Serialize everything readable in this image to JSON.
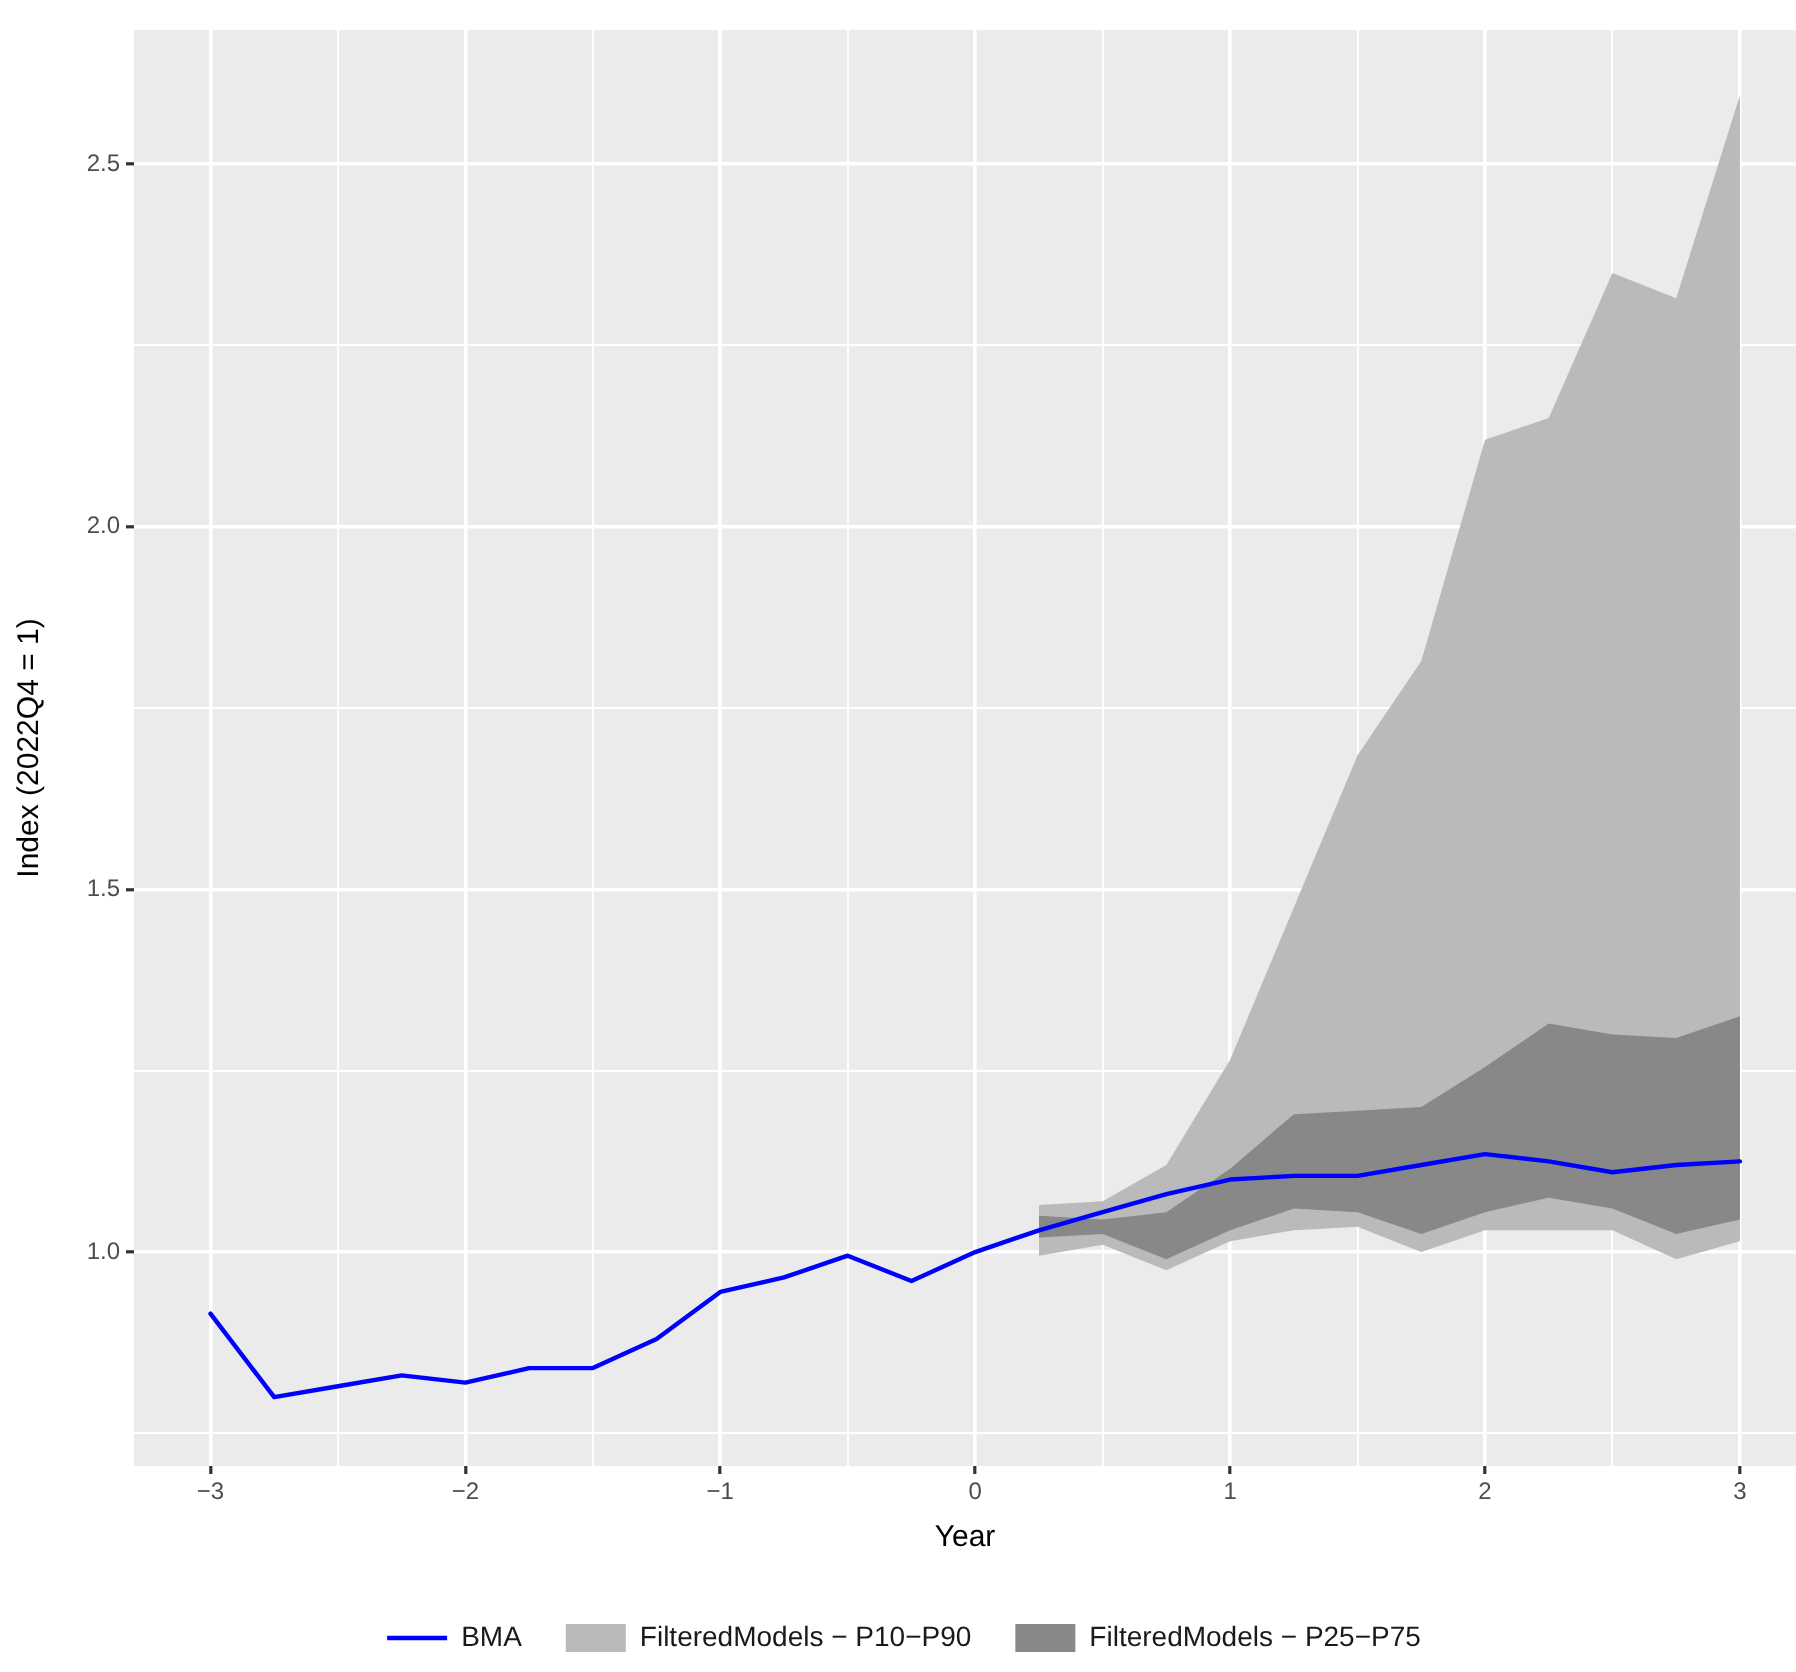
{
  "chart_data": {
    "type": "line",
    "xlabel": "Year",
    "ylabel": "Index (2022Q4 = 1)",
    "xlim": [
      -3.3,
      3.22
    ],
    "ylim": [
      0.705,
      2.685
    ],
    "xticks": [
      {
        "value": -3,
        "label": "−3"
      },
      {
        "value": -2.5,
        "label": null
      },
      {
        "value": -2,
        "label": "−2"
      },
      {
        "value": -1.5,
        "label": null
      },
      {
        "value": -1,
        "label": "−1"
      },
      {
        "value": -0.5,
        "label": null
      },
      0,
      {
        "value": 0.5,
        "label": null
      },
      1,
      {
        "value": 1.5,
        "label": null
      },
      2,
      {
        "value": 2.5,
        "label": null
      },
      3
    ],
    "yticks": [
      {
        "value": 0.75,
        "label": null
      },
      {
        "value": 1,
        "label": "1.0"
      },
      {
        "value": 1.25,
        "label": null
      },
      1.5,
      {
        "value": 1.75,
        "label": null
      },
      {
        "value": 2,
        "label": "2.0"
      },
      {
        "value": 2.25,
        "label": null
      },
      2.5
    ],
    "grid": true,
    "legend": "bottom",
    "line_style": "solid",
    "series": [
      {
        "name": "BMA",
        "color": "#0000ff",
        "x": [
          -3,
          -2.75,
          -2.5,
          -2.25,
          -2,
          -1.75,
          -1.5,
          -1.25,
          -1,
          -0.75,
          -0.5,
          -0.25,
          0,
          0.25,
          0.5,
          0.75,
          1,
          1.25,
          1.5,
          1.75,
          2,
          2.25,
          2.5,
          2.75,
          3
        ],
        "values": [
          0.915,
          0.8,
          0.815,
          0.83,
          0.82,
          0.84,
          0.84,
          0.88,
          0.945,
          0.965,
          0.995,
          0.96,
          1.0,
          1.03,
          1.055,
          1.08,
          1.1,
          1.105,
          1.105,
          1.12,
          1.135,
          1.125,
          1.11,
          1.12,
          1.125
        ]
      },
      {
        "name": "FilteredModels − P10−P90",
        "type": "area",
        "color": "#bababa",
        "x": [
          0.25,
          0.5,
          0.75,
          1,
          1.25,
          1.5,
          1.75,
          2,
          2.25,
          2.5,
          2.75,
          3
        ],
        "values": [
          null,
          null,
          null,
          null,
          null,
          null,
          null,
          null,
          null,
          null,
          null,
          null
        ],
        "lower": [
          0.995,
          1.01,
          0.975,
          1.015,
          1.03,
          1.035,
          1.0,
          1.03,
          1.03,
          1.03,
          0.99,
          1.015
        ],
        "upper": [
          1.065,
          1.07,
          1.12,
          1.265,
          1.475,
          1.685,
          1.815,
          2.12,
          2.15,
          2.35,
          2.315,
          2.595
        ]
      },
      {
        "name": "FilteredModels − P25−P75",
        "type": "area",
        "color": "#888888",
        "x": [
          0.25,
          0.5,
          0.75,
          1,
          1.25,
          1.5,
          1.75,
          2,
          2.25,
          2.5,
          2.75,
          3
        ],
        "values": [
          null,
          null,
          null,
          null,
          null,
          null,
          null,
          null,
          null,
          null,
          null,
          null
        ],
        "lower": [
          1.02,
          1.025,
          0.99,
          1.03,
          1.06,
          1.055,
          1.025,
          1.055,
          1.075,
          1.06,
          1.025,
          1.045
        ],
        "upper": [
          1.05,
          1.045,
          1.055,
          1.115,
          1.19,
          1.195,
          1.2,
          1.255,
          1.315,
          1.3,
          1.295,
          1.325
        ]
      }
    ]
  }
}
